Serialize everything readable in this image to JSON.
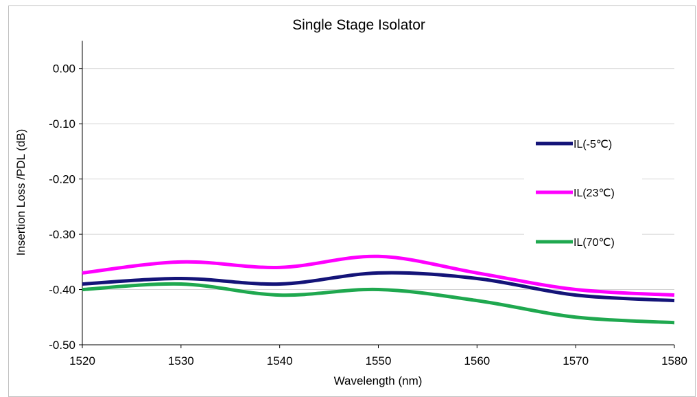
{
  "chart_data": {
    "type": "line",
    "title": "Single Stage Isolator",
    "xlabel": "Wavelength  (nm)",
    "ylabel": "Insertion Loss /PDL (dB)",
    "xlim": [
      1520,
      1580
    ],
    "ylim": [
      -0.5,
      0.05
    ],
    "x_ticks": [
      "1520",
      "1530",
      "1540",
      "1550",
      "1560",
      "1570",
      "1580"
    ],
    "y_ticks": [
      "0.00",
      "-0.10",
      "-0.20",
      "-0.30",
      "-0.40",
      "-0.50"
    ],
    "grid": true,
    "legend_position": "right",
    "x": [
      1520,
      1530,
      1540,
      1550,
      1560,
      1570,
      1580
    ],
    "series": [
      {
        "name": "IL(-5℃)",
        "color": "#141478",
        "values": [
          -0.39,
          -0.38,
          -0.39,
          -0.37,
          -0.38,
          -0.41,
          -0.42
        ]
      },
      {
        "name": "IL(23℃)",
        "color": "#ff00ff",
        "values": [
          -0.37,
          -0.35,
          -0.36,
          -0.34,
          -0.37,
          -0.4,
          -0.41
        ]
      },
      {
        "name": "IL(70℃)",
        "color": "#1fa84f",
        "values": [
          -0.4,
          -0.39,
          -0.41,
          -0.4,
          -0.42,
          -0.45,
          -0.46
        ]
      }
    ]
  }
}
